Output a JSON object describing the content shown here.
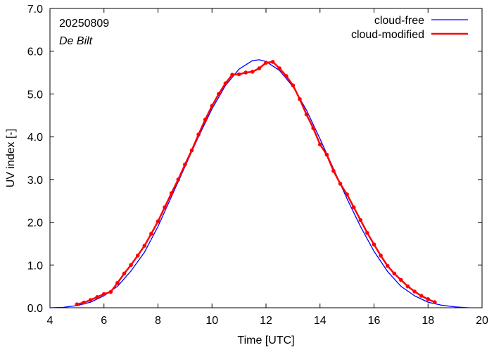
{
  "chart_data": {
    "type": "line",
    "xlabel": "Time  [UTC]",
    "ylabel": "UV index  [-]",
    "xlim": [
      4,
      20
    ],
    "ylim": [
      0,
      7
    ],
    "x_ticks": [
      4,
      6,
      8,
      10,
      12,
      14,
      16,
      18,
      20
    ],
    "x_tick_labels": [
      "4",
      "6",
      "8",
      "10",
      "12",
      "14",
      "16",
      "18",
      "20"
    ],
    "y_ticks": [
      0,
      1,
      2,
      3,
      4,
      5,
      6,
      7
    ],
    "y_tick_labels": [
      "0.0",
      "1.0",
      "2.0",
      "3.0",
      "4.0",
      "5.0",
      "6.0",
      "7.0"
    ],
    "grid": false,
    "legend_position": "top-right",
    "annotations": {
      "date": "20250809",
      "location": "De Bilt"
    },
    "series": [
      {
        "name": "cloud-free",
        "color": "#0000ff",
        "markers": false,
        "points": [
          [
            4.0,
            0.0
          ],
          [
            4.5,
            0.01
          ],
          [
            5.0,
            0.05
          ],
          [
            5.5,
            0.13
          ],
          [
            6.0,
            0.28
          ],
          [
            6.5,
            0.5
          ],
          [
            7.0,
            0.86
          ],
          [
            7.5,
            1.3
          ],
          [
            8.0,
            1.9
          ],
          [
            8.5,
            2.6
          ],
          [
            9.0,
            3.3
          ],
          [
            9.5,
            4.0
          ],
          [
            10.0,
            4.65
          ],
          [
            10.5,
            5.2
          ],
          [
            11.0,
            5.58
          ],
          [
            11.5,
            5.78
          ],
          [
            11.75,
            5.8
          ],
          [
            12.0,
            5.76
          ],
          [
            12.5,
            5.55
          ],
          [
            13.0,
            5.17
          ],
          [
            13.5,
            4.62
          ],
          [
            14.0,
            3.95
          ],
          [
            14.5,
            3.25
          ],
          [
            15.0,
            2.55
          ],
          [
            15.5,
            1.9
          ],
          [
            16.0,
            1.32
          ],
          [
            16.5,
            0.85
          ],
          [
            17.0,
            0.5
          ],
          [
            17.5,
            0.28
          ],
          [
            18.0,
            0.13
          ],
          [
            18.5,
            0.06
          ],
          [
            19.0,
            0.02
          ],
          [
            19.5,
            0.0
          ]
        ]
      },
      {
        "name": "cloud-modified",
        "color": "#ff0000",
        "markers": true,
        "points": [
          [
            5.0,
            0.08
          ],
          [
            5.25,
            0.12
          ],
          [
            5.5,
            0.18
          ],
          [
            5.75,
            0.25
          ],
          [
            6.0,
            0.32
          ],
          [
            6.25,
            0.37
          ],
          [
            6.5,
            0.58
          ],
          [
            6.75,
            0.8
          ],
          [
            7.0,
            1.0
          ],
          [
            7.25,
            1.22
          ],
          [
            7.5,
            1.45
          ],
          [
            7.75,
            1.73
          ],
          [
            8.0,
            2.02
          ],
          [
            8.25,
            2.35
          ],
          [
            8.5,
            2.68
          ],
          [
            8.75,
            3.0
          ],
          [
            9.0,
            3.35
          ],
          [
            9.25,
            3.68
          ],
          [
            9.5,
            4.05
          ],
          [
            9.75,
            4.4
          ],
          [
            10.0,
            4.72
          ],
          [
            10.25,
            5.0
          ],
          [
            10.5,
            5.25
          ],
          [
            10.75,
            5.45
          ],
          [
            11.0,
            5.46
          ],
          [
            11.25,
            5.5
          ],
          [
            11.5,
            5.52
          ],
          [
            11.75,
            5.6
          ],
          [
            12.0,
            5.73
          ],
          [
            12.25,
            5.75
          ],
          [
            12.5,
            5.6
          ],
          [
            12.75,
            5.42
          ],
          [
            13.0,
            5.2
          ],
          [
            13.25,
            4.88
          ],
          [
            13.5,
            4.52
          ],
          [
            13.75,
            4.2
          ],
          [
            14.0,
            3.82
          ],
          [
            14.25,
            3.58
          ],
          [
            14.5,
            3.2
          ],
          [
            14.75,
            2.9
          ],
          [
            15.0,
            2.65
          ],
          [
            15.25,
            2.35
          ],
          [
            15.5,
            2.05
          ],
          [
            15.75,
            1.75
          ],
          [
            16.0,
            1.48
          ],
          [
            16.25,
            1.22
          ],
          [
            16.5,
            0.98
          ],
          [
            16.75,
            0.8
          ],
          [
            17.0,
            0.65
          ],
          [
            17.25,
            0.5
          ],
          [
            17.5,
            0.38
          ],
          [
            17.75,
            0.28
          ],
          [
            18.0,
            0.2
          ],
          [
            18.25,
            0.13
          ]
        ]
      }
    ]
  }
}
